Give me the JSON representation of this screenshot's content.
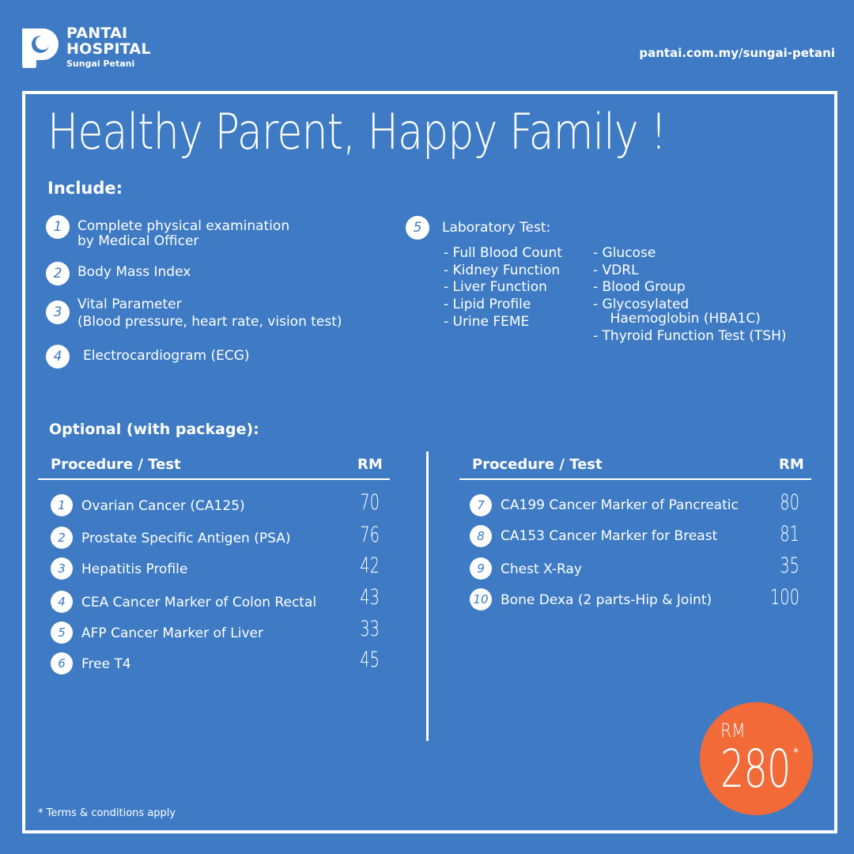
{
  "brand": {
    "line1": "PANTAI",
    "line2": "HOSPITAL",
    "line3": "Sungai Petani",
    "website": "pantai.com.my/sungai-petani"
  },
  "title": "Healthy Parent, Happy Family !",
  "include": {
    "heading": "Include:",
    "items": [
      {
        "num": "1",
        "lines": [
          "Complete physical examination",
          "by Medical Officer"
        ]
      },
      {
        "num": "2",
        "lines": [
          "Body Mass Index"
        ]
      },
      {
        "num": "3",
        "lines": [
          "Vital Parameter",
          "(Blood pressure, heart rate, vision test)"
        ]
      },
      {
        "num": "4",
        "lines": [
          "Electrocardiogram (ECG)"
        ]
      }
    ],
    "lab": {
      "num": "5",
      "heading": "Laboratory Test:",
      "col1": [
        "-  Full Blood Count",
        "-  Kidney Function",
        "-  Liver Function",
        "-  Lipid Profile",
        "-  Urine FEME"
      ],
      "col2": [
        "-  Glucose",
        "-  VDRL",
        "-  Blood Group",
        "-  Glycosylated",
        "    Haemoglobin (HBA1C)",
        "-  Thyroid Function Test (TSH)"
      ]
    }
  },
  "optional": {
    "heading": "Optional (with package):",
    "col_procedure": "Procedure / Test",
    "col_price": "RM",
    "left": [
      {
        "num": "1",
        "name": "Ovarian Cancer (CA125)",
        "price": "70"
      },
      {
        "num": "2",
        "name": "Prostate Specific Antigen (PSA)",
        "price": "76"
      },
      {
        "num": "3",
        "name": "Hepatitis Profile",
        "price": "42"
      },
      {
        "num": "4",
        "name": "CEA Cancer Marker of Colon Rectal",
        "price": "43"
      },
      {
        "num": "5",
        "name": "AFP Cancer Marker of Liver",
        "price": "33"
      },
      {
        "num": "6",
        "name": "Free T4",
        "price": "45"
      }
    ],
    "right": [
      {
        "num": "7",
        "name": "CA199 Cancer Marker of Pancreatic",
        "price": "80"
      },
      {
        "num": "8",
        "name": "CA153 Cancer Marker for Breast",
        "price": "81"
      },
      {
        "num": "9",
        "name": "Chest X-Ray",
        "price": "35"
      },
      {
        "num": "10",
        "name": "Bone Dexa (2 parts-Hip & Joint)",
        "price": "100"
      }
    ]
  },
  "package_price": {
    "currency": "RM",
    "amount": "280",
    "mark": "*"
  },
  "footnote": "*   Terms & conditions apply",
  "colors": {
    "background": "#3e7bc4",
    "badge": "#f26a38",
    "text": "#ffffff"
  }
}
